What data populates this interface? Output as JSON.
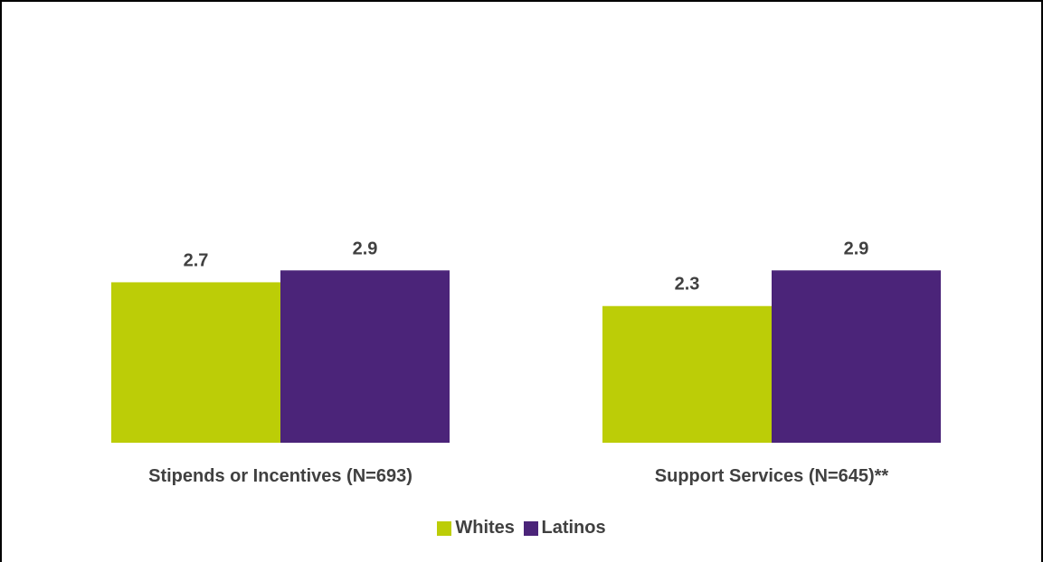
{
  "chart_data": {
    "type": "bar",
    "title": "",
    "xlabel": "",
    "ylabel": "",
    "categories": [
      "Stipends or Incentives (N=693)",
      "Support Services (N=645)**"
    ],
    "series": [
      {
        "name": "Whites",
        "values": [
          2.7,
          2.3
        ],
        "labels": [
          "2.7",
          "2.3"
        ],
        "color": "#bccd07"
      },
      {
        "name": "Latinos",
        "values": [
          2.9,
          2.9
        ],
        "labels": [
          "2.9",
          "2.9"
        ],
        "color": "#4b2479"
      }
    ],
    "ylim": [
      0,
      5.2
    ],
    "grid": false,
    "legend_position": "bottom"
  }
}
